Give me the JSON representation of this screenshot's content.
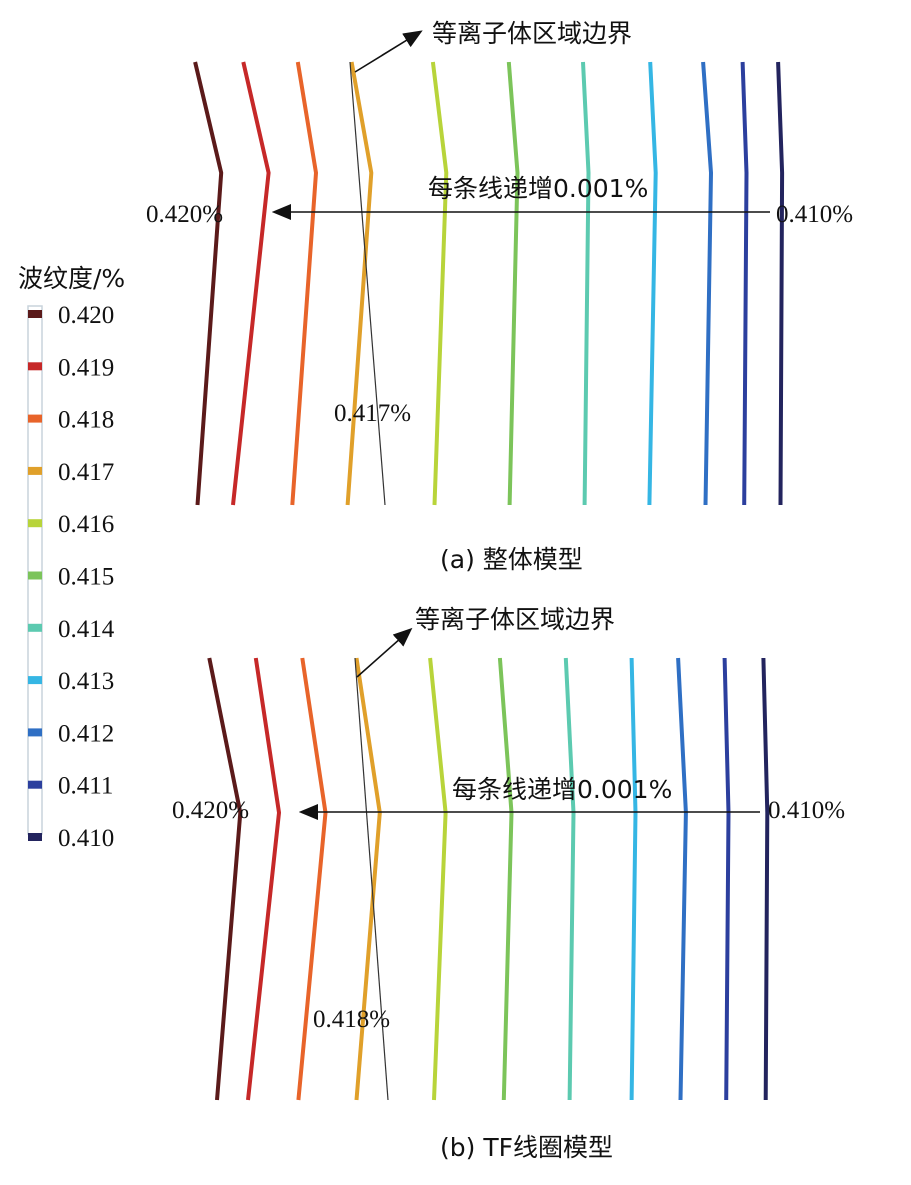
{
  "legend": {
    "title": "波纹度/%",
    "entries": [
      {
        "label": "0.420",
        "color": "#5b1a1a"
      },
      {
        "label": "0.419",
        "color": "#c62828"
      },
      {
        "label": "0.418",
        "color": "#e8642a"
      },
      {
        "label": "0.417",
        "color": "#e0a02a"
      },
      {
        "label": "0.416",
        "color": "#b8d43a"
      },
      {
        "label": "0.415",
        "color": "#7cc45a"
      },
      {
        "label": "0.414",
        "color": "#5ccab0"
      },
      {
        "label": "0.413",
        "color": "#35b6e4"
      },
      {
        "label": "0.412",
        "color": "#2f6fc4"
      },
      {
        "label": "0.411",
        "color": "#2c3f9e"
      },
      {
        "label": "0.410",
        "color": "#23245e"
      }
    ]
  },
  "chart_data": [
    {
      "type": "line",
      "caption": "(a) 整体模型",
      "boundary_label": "等离子体区域边界",
      "increment_label": "每条线递增0.001%",
      "left_label": "0.420%",
      "right_label": "0.410%",
      "mid_label": "0.417%",
      "xlim": [
        0,
        1
      ],
      "ylim": [
        0,
        1
      ],
      "series": [
        {
          "level": 0.42,
          "points": [
            [
              0.247,
              0.0
            ],
            [
              0.28,
              0.25
            ],
            [
              0.25,
              1.0
            ]
          ]
        },
        {
          "level": 0.419,
          "points": [
            [
              0.308,
              0.0
            ],
            [
              0.34,
              0.25
            ],
            [
              0.295,
              1.0
            ]
          ]
        },
        {
          "level": 0.418,
          "points": [
            [
              0.377,
              0.0
            ],
            [
              0.4,
              0.25
            ],
            [
              0.37,
              1.0
            ]
          ]
        },
        {
          "level": 0.417,
          "points": [
            [
              0.445,
              0.0
            ],
            [
              0.47,
              0.25
            ],
            [
              0.44,
              1.0
            ]
          ]
        },
        {
          "level": 0.416,
          "points": [
            [
              0.548,
              0.0
            ],
            [
              0.565,
              0.25
            ],
            [
              0.55,
              1.0
            ]
          ]
        },
        {
          "level": 0.415,
          "points": [
            [
              0.644,
              0.0
            ],
            [
              0.655,
              0.25
            ],
            [
              0.645,
              1.0
            ]
          ]
        },
        {
          "level": 0.414,
          "points": [
            [
              0.738,
              0.0
            ],
            [
              0.745,
              0.25
            ],
            [
              0.74,
              1.0
            ]
          ]
        },
        {
          "level": 0.413,
          "points": [
            [
              0.823,
              0.0
            ],
            [
              0.83,
              0.25
            ],
            [
              0.822,
              1.0
            ]
          ]
        },
        {
          "level": 0.412,
          "points": [
            [
              0.89,
              0.0
            ],
            [
              0.9,
              0.25
            ],
            [
              0.893,
              1.0
            ]
          ]
        },
        {
          "level": 0.411,
          "points": [
            [
              0.94,
              0.0
            ],
            [
              0.945,
              0.25
            ],
            [
              0.942,
              1.0
            ]
          ]
        },
        {
          "level": 0.41,
          "points": [
            [
              0.985,
              0.0
            ],
            [
              0.99,
              0.25
            ],
            [
              0.988,
              1.0
            ]
          ]
        }
      ]
    },
    {
      "type": "line",
      "caption": "(b) TF线圈模型",
      "boundary_label": "等离子体区域边界",
      "increment_label": "每条线递增0.001%",
      "left_label": "0.420%",
      "right_label": "0.410%",
      "mid_label": "0.418%",
      "xlim": [
        0,
        1
      ],
      "ylim": [
        0,
        1
      ],
      "series": [
        {
          "level": 0.42,
          "points": [
            [
              0.27,
              0.0
            ],
            [
              0.31,
              0.35
            ],
            [
              0.28,
              1.0
            ]
          ]
        },
        {
          "level": 0.419,
          "points": [
            [
              0.33,
              0.0
            ],
            [
              0.36,
              0.35
            ],
            [
              0.32,
              1.0
            ]
          ]
        },
        {
          "level": 0.418,
          "points": [
            [
              0.39,
              0.0
            ],
            [
              0.42,
              0.35
            ],
            [
              0.385,
              1.0
            ]
          ]
        },
        {
          "level": 0.417,
          "points": [
            [
              0.46,
              0.0
            ],
            [
              0.49,
              0.35
            ],
            [
              0.46,
              1.0
            ]
          ]
        },
        {
          "level": 0.416,
          "points": [
            [
              0.555,
              0.0
            ],
            [
              0.575,
              0.35
            ],
            [
              0.56,
              1.0
            ]
          ]
        },
        {
          "level": 0.415,
          "points": [
            [
              0.645,
              0.0
            ],
            [
              0.66,
              0.35
            ],
            [
              0.65,
              1.0
            ]
          ]
        },
        {
          "level": 0.414,
          "points": [
            [
              0.73,
              0.0
            ],
            [
              0.74,
              0.35
            ],
            [
              0.735,
              1.0
            ]
          ]
        },
        {
          "level": 0.413,
          "points": [
            [
              0.815,
              0.0
            ],
            [
              0.82,
              0.35
            ],
            [
              0.815,
              1.0
            ]
          ]
        },
        {
          "level": 0.412,
          "points": [
            [
              0.875,
              0.0
            ],
            [
              0.885,
              0.35
            ],
            [
              0.878,
              1.0
            ]
          ]
        },
        {
          "level": 0.411,
          "points": [
            [
              0.935,
              0.0
            ],
            [
              0.94,
              0.35
            ],
            [
              0.937,
              1.0
            ]
          ]
        },
        {
          "level": 0.41,
          "points": [
            [
              0.985,
              0.0
            ],
            [
              0.99,
              0.35
            ],
            [
              0.988,
              1.0
            ]
          ]
        }
      ]
    }
  ]
}
